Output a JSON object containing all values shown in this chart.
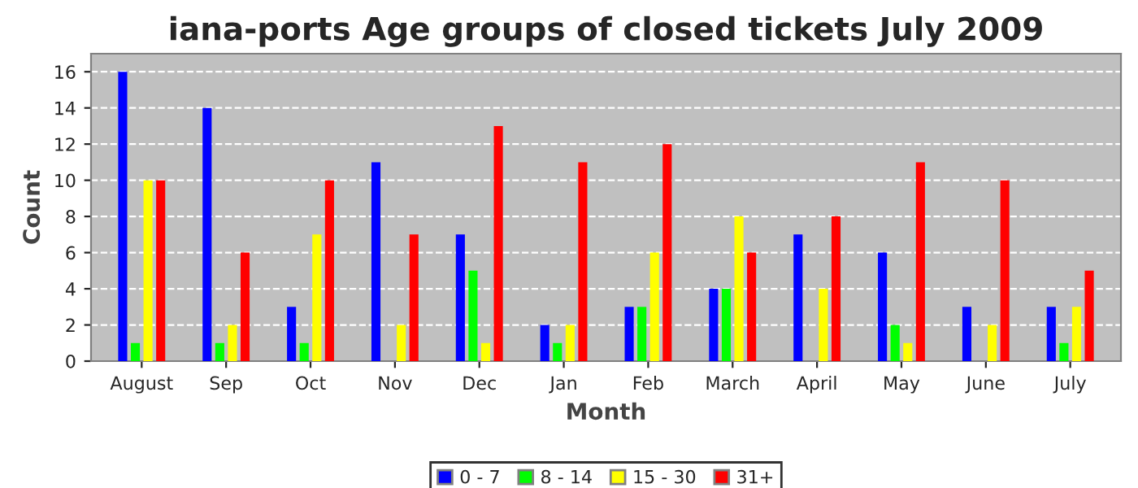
{
  "chart_data": {
    "type": "bar",
    "title": "iana-ports Age groups of closed tickets July 2009",
    "xlabel": "Month",
    "ylabel": "Count",
    "categories": [
      "August",
      "Sep",
      "Oct",
      "Nov",
      "Dec",
      "Jan",
      "Feb",
      "March",
      "April",
      "May",
      "June",
      "July"
    ],
    "series": [
      {
        "name": "0 - 7",
        "color": "#0000ff",
        "values": [
          16,
          14,
          3,
          11,
          7,
          2,
          3,
          4,
          7,
          6,
          3,
          3
        ]
      },
      {
        "name": "8 - 14",
        "color": "#00ff00",
        "values": [
          1,
          1,
          1,
          0,
          5,
          1,
          3,
          4,
          0,
          2,
          0,
          1
        ]
      },
      {
        "name": "15 - 30",
        "color": "#ffff00",
        "values": [
          10,
          2,
          7,
          2,
          1,
          2,
          6,
          8,
          4,
          1,
          2,
          3
        ]
      },
      {
        "name": "31+",
        "color": "#ff0000",
        "values": [
          10,
          6,
          10,
          7,
          13,
          11,
          12,
          6,
          8,
          11,
          10,
          5
        ]
      }
    ],
    "ylim": [
      0,
      17
    ],
    "yticks": [
      0,
      2,
      4,
      6,
      8,
      10,
      12,
      14,
      16
    ],
    "grid": "y",
    "legend": "bottom"
  }
}
